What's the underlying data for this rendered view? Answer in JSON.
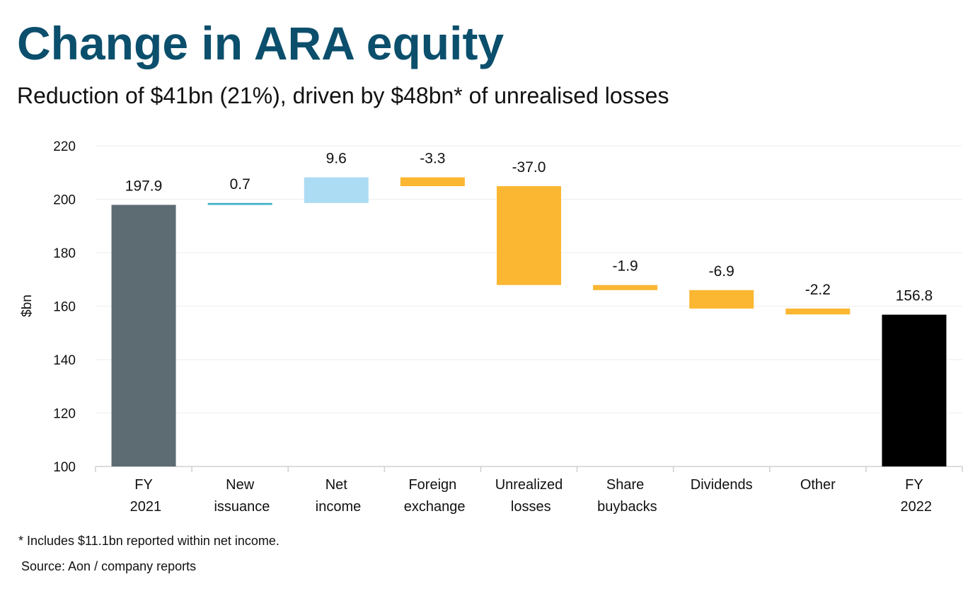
{
  "chart_data": {
    "type": "waterfall",
    "title": "Change in ARA equity",
    "subtitle": "Reduction of $41bn (21%), driven by $48bn* of unrealised losses",
    "y_label": "$bn",
    "categories": [
      "FY 2021",
      "New issuance",
      "Net income",
      "Foreign exchange",
      "Unrealized losses",
      "Share buybacks",
      "Dividends",
      "Other",
      "FY 2022"
    ],
    "values": [
      197.9,
      0.7,
      9.6,
      -3.3,
      -37.0,
      -1.9,
      -6.9,
      -2.2,
      156.8
    ],
    "value_labels": [
      "197.9",
      "0.7",
      "9.6",
      "-3.3",
      "-37.0",
      "-1.9",
      "-6.9",
      "-2.2",
      "156.8"
    ],
    "bar_types": [
      "total",
      "change",
      "change",
      "change",
      "change",
      "change",
      "change",
      "change",
      "total"
    ],
    "colors": [
      "#5d6b73",
      "#3aaec6",
      "#acdcf3",
      "#fbb731",
      "#fbb731",
      "#fbb731",
      "#fbb731",
      "#fbb731",
      "#000000"
    ],
    "ylim": [
      100,
      220
    ],
    "yticks": [
      100,
      120,
      140,
      160,
      180,
      200,
      220
    ],
    "grid": true,
    "footnote": "* Includes $11.1bn reported within net income.",
    "source": "Source: Aon / company reports"
  }
}
